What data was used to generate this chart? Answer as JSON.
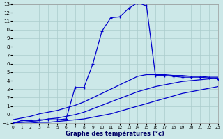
{
  "xlabel": "Graphe des températures (°c)",
  "bg_color": "#cce8e8",
  "grid_color": "#aacccc",
  "line_color": "#0000cc",
  "xlim": [
    0,
    23
  ],
  "ylim": [
    -1,
    13
  ],
  "xticks": [
    0,
    1,
    2,
    3,
    4,
    5,
    6,
    7,
    8,
    9,
    10,
    11,
    12,
    13,
    14,
    15,
    16,
    17,
    18,
    19,
    20,
    21,
    22,
    23
  ],
  "yticks": [
    -1,
    0,
    1,
    2,
    3,
    4,
    5,
    6,
    7,
    8,
    9,
    10,
    11,
    12,
    13
  ],
  "main_x": [
    0,
    1,
    2,
    3,
    4,
    5,
    6,
    7,
    8,
    9,
    10,
    11,
    12,
    13,
    14,
    15,
    16,
    17,
    18,
    19,
    20,
    21,
    22,
    23
  ],
  "main_y": [
    -1.0,
    -0.7,
    -0.7,
    -0.6,
    -0.6,
    -0.6,
    -0.5,
    3.2,
    3.2,
    6.0,
    9.8,
    11.4,
    11.5,
    12.5,
    13.2,
    12.8,
    4.6,
    4.6,
    4.5,
    4.4,
    4.4,
    4.4,
    4.3,
    4.2
  ],
  "avg_x": [
    0,
    1,
    2,
    3,
    4,
    5,
    6,
    7,
    8,
    9,
    10,
    11,
    12,
    13,
    14,
    15,
    16,
    17,
    18,
    19,
    20,
    21,
    22,
    23
  ],
  "avg_y": [
    -1.0,
    -0.9,
    -0.8,
    -0.7,
    -0.5,
    -0.4,
    -0.2,
    0.0,
    0.3,
    0.7,
    1.1,
    1.5,
    1.9,
    2.3,
    2.7,
    3.0,
    3.3,
    3.5,
    3.7,
    3.9,
    4.0,
    4.1,
    4.2,
    4.3
  ],
  "min_x": [
    0,
    1,
    2,
    3,
    4,
    5,
    6,
    7,
    8,
    9,
    10,
    11,
    12,
    13,
    14,
    15,
    16,
    17,
    18,
    19,
    20,
    21,
    22,
    23
  ],
  "min_y": [
    -1.0,
    -1.0,
    -1.0,
    -0.9,
    -0.9,
    -0.8,
    -0.7,
    -0.6,
    -0.5,
    -0.3,
    -0.1,
    0.1,
    0.4,
    0.7,
    1.0,
    1.3,
    1.6,
    1.9,
    2.2,
    2.5,
    2.7,
    2.9,
    3.1,
    3.3
  ],
  "max_x": [
    0,
    1,
    2,
    3,
    4,
    5,
    6,
    7,
    8,
    9,
    10,
    11,
    12,
    13,
    14,
    15,
    16,
    17,
    18,
    19,
    20,
    21,
    22,
    23
  ],
  "max_y": [
    -0.6,
    -0.4,
    -0.2,
    0.1,
    0.3,
    0.5,
    0.8,
    1.1,
    1.5,
    2.0,
    2.5,
    3.0,
    3.5,
    4.0,
    4.5,
    4.7,
    4.7,
    4.7,
    4.6,
    4.6,
    4.5,
    4.5,
    4.4,
    4.4
  ]
}
